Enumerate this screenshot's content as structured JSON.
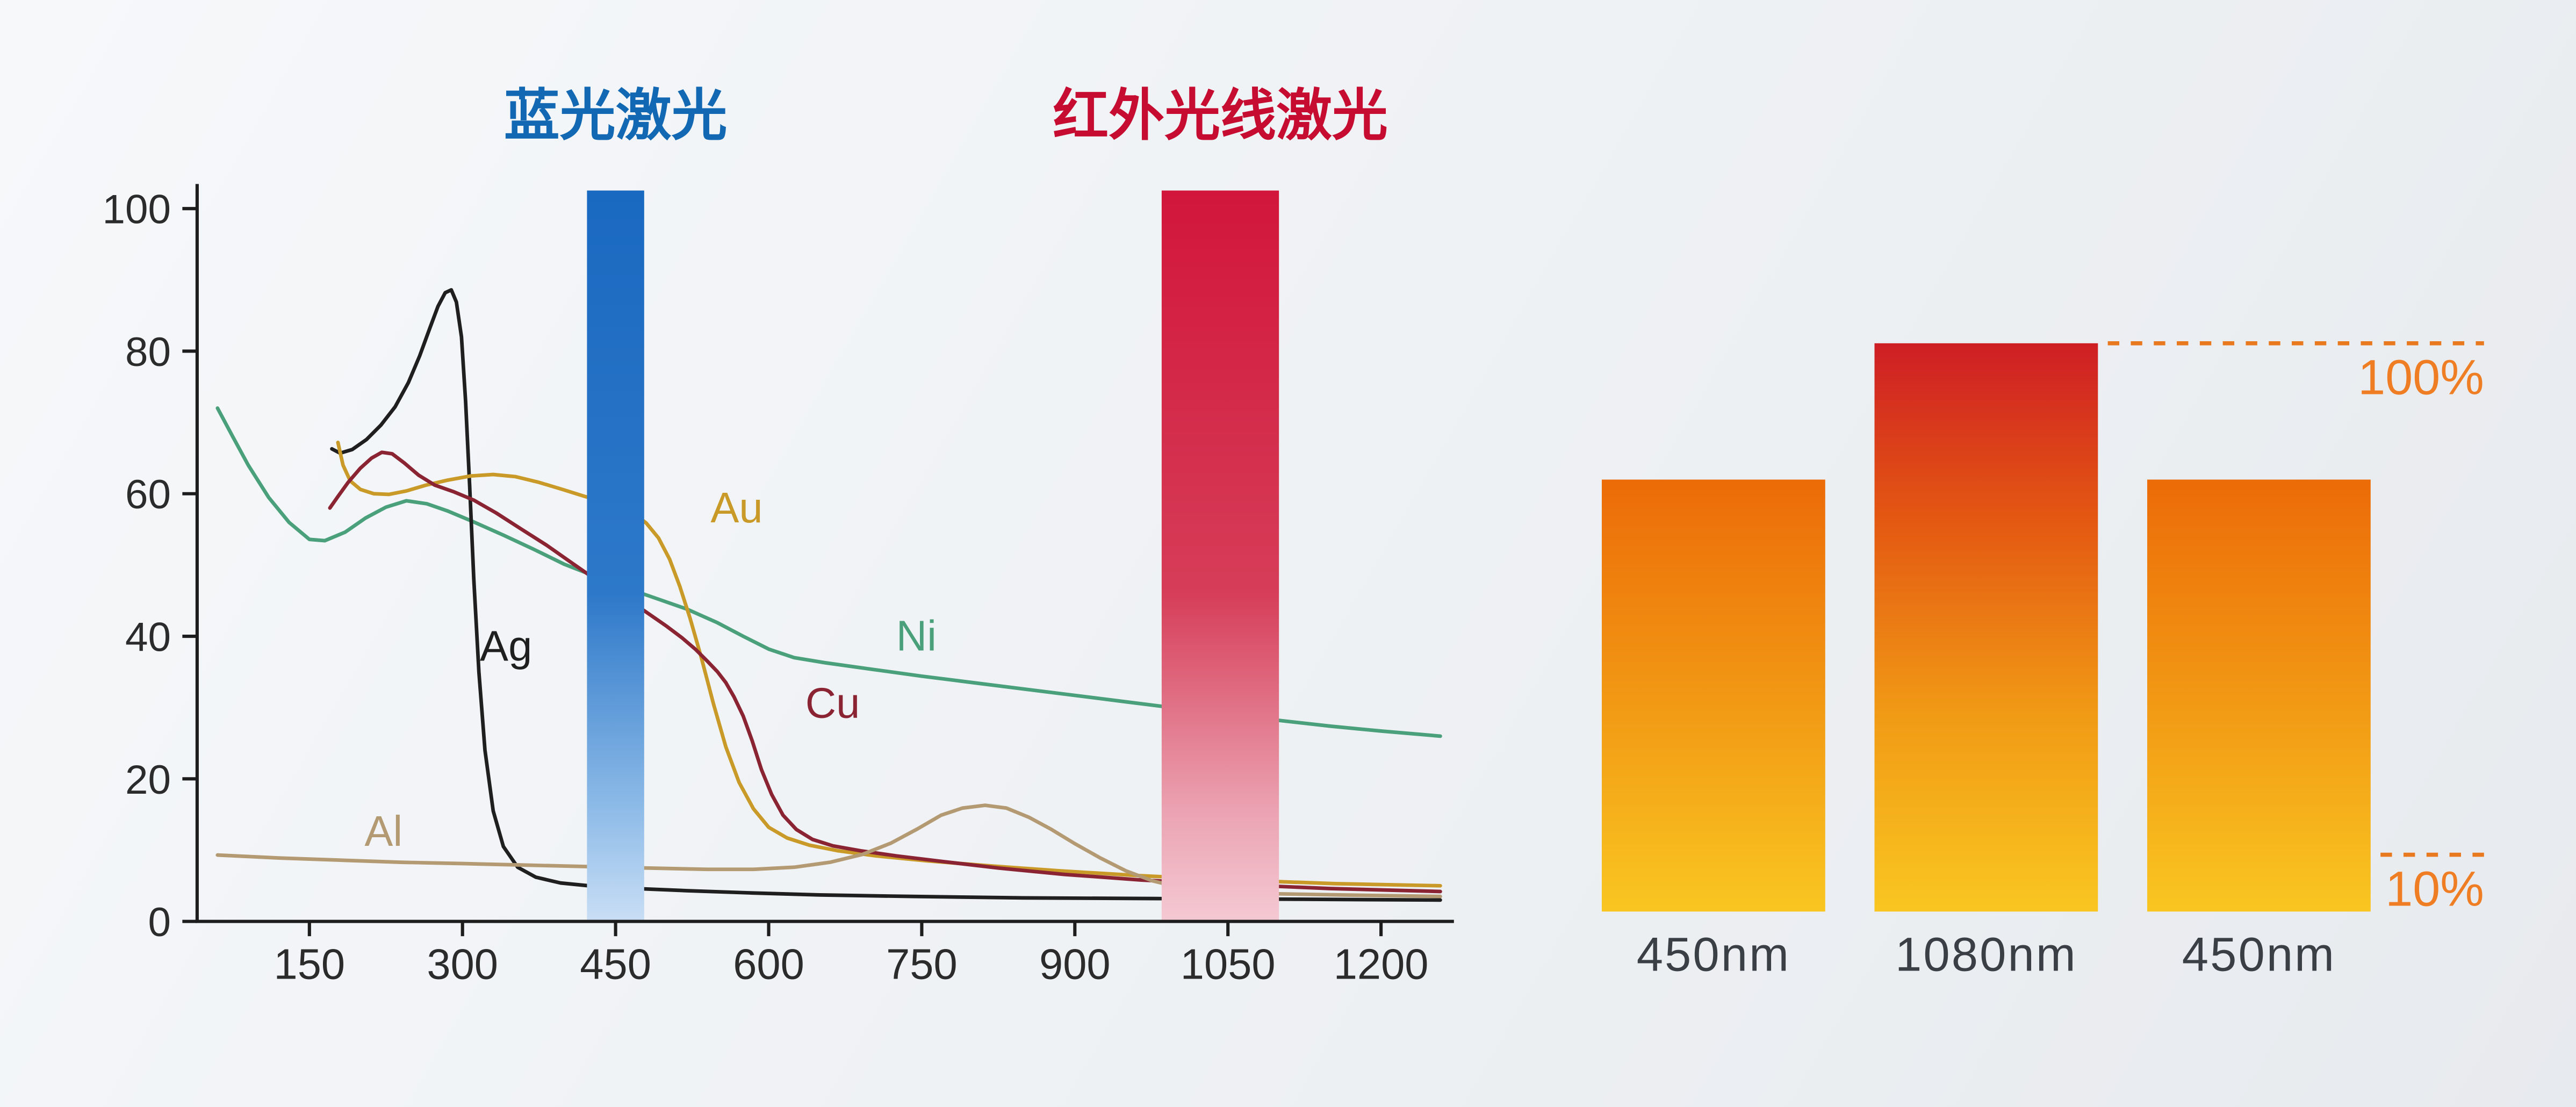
{
  "chart_data": [
    {
      "type": "line",
      "title": "",
      "xlabel": "",
      "ylabel": "",
      "xlim": [
        40,
        1265
      ],
      "ylim": [
        0,
        100
      ],
      "grid": false,
      "xticks": [
        "150",
        "300",
        "450",
        "600",
        "750",
        "900",
        "1050",
        "1200"
      ],
      "xtick_values": [
        150,
        300,
        450,
        600,
        750,
        900,
        1050,
        1200
      ],
      "yticks": [
        "0",
        "20",
        "40",
        "60",
        "80",
        "100"
      ],
      "ytick_values": [
        0,
        20,
        40,
        60,
        80,
        100
      ],
      "bands": [
        {
          "name": "blue-laser",
          "title": "蓝光激光",
          "title_color": "#1268b3",
          "range": [
            422,
            478
          ],
          "gradient": [
            [
              "0%",
              "#1a69c1"
            ],
            [
              "55%",
              "#2d78c9"
            ],
            [
              "85%",
              "#8fbce8"
            ],
            [
              "100%",
              "#c9def5"
            ]
          ]
        },
        {
          "name": "ir-laser",
          "title": "红外光线激光",
          "title_color": "#c60c30",
          "range": [
            985,
            1100
          ],
          "gradient": [
            [
              "0%",
              "#d2163b"
            ],
            [
              "55%",
              "#d63d58"
            ],
            [
              "85%",
              "#eba3b2"
            ],
            [
              "100%",
              "#f4c9d3"
            ]
          ]
        }
      ],
      "series": [
        {
          "name": "Ni",
          "color": "#4aa07a",
          "label_at": [
            725,
            38
          ],
          "points": [
            [
              60,
              72
            ],
            [
              75,
              68
            ],
            [
              90,
              64
            ],
            [
              110,
              59.5
            ],
            [
              130,
              56
            ],
            [
              150,
              53.6
            ],
            [
              165,
              53.4
            ],
            [
              185,
              54.6
            ],
            [
              205,
              56.6
            ],
            [
              225,
              58.1
            ],
            [
              245,
              59
            ],
            [
              265,
              58.6
            ],
            [
              285,
              57.6
            ],
            [
              310,
              56.1
            ],
            [
              340,
              54.2
            ],
            [
              370,
              52.2
            ],
            [
              400,
              50.1
            ],
            [
              430,
              48.4
            ],
            [
              460,
              46.8
            ],
            [
              490,
              45.3
            ],
            [
              520,
              43.8
            ],
            [
              550,
              41.9
            ],
            [
              575,
              40
            ],
            [
              600,
              38.2
            ],
            [
              625,
              37
            ],
            [
              655,
              36.3
            ],
            [
              700,
              35.4
            ],
            [
              750,
              34.4
            ],
            [
              800,
              33.5
            ],
            [
              850,
              32.6
            ],
            [
              900,
              31.7
            ],
            [
              950,
              30.8
            ],
            [
              1000,
              29.9
            ],
            [
              1050,
              29.1
            ],
            [
              1100,
              28.2
            ],
            [
              1150,
              27.4
            ],
            [
              1200,
              26.7
            ],
            [
              1258,
              26
            ]
          ]
        },
        {
          "name": "Ag",
          "color": "#1f1f1f",
          "label_at": [
            317,
            36.6
          ],
          "points": [
            [
              172,
              66.3
            ],
            [
              180,
              65.7
            ],
            [
              192,
              66.2
            ],
            [
              206,
              67.6
            ],
            [
              220,
              69.6
            ],
            [
              234,
              72.2
            ],
            [
              247,
              75.6
            ],
            [
              258,
              79.3
            ],
            [
              268,
              83.2
            ],
            [
              276,
              86.3
            ],
            [
              283,
              88.2
            ],
            [
              289,
              88.6
            ],
            [
              294,
              86.9
            ],
            [
              299,
              82
            ],
            [
              303,
              73
            ],
            [
              307,
              61
            ],
            [
              311,
              48
            ],
            [
              316,
              35
            ],
            [
              322,
              24
            ],
            [
              330,
              15.5
            ],
            [
              340,
              10.5
            ],
            [
              354,
              7.6
            ],
            [
              372,
              6.2
            ],
            [
              396,
              5.4
            ],
            [
              430,
              4.9
            ],
            [
              470,
              4.6
            ],
            [
              520,
              4.3
            ],
            [
              580,
              4
            ],
            [
              650,
              3.7
            ],
            [
              740,
              3.5
            ],
            [
              850,
              3.3
            ],
            [
              980,
              3.2
            ],
            [
              1120,
              3.1
            ],
            [
              1258,
              3
            ]
          ]
        },
        {
          "name": "Au",
          "color": "#c99a28",
          "label_at": [
            543,
            56
          ],
          "points": [
            [
              178,
              67.2
            ],
            [
              183,
              64
            ],
            [
              190,
              61.8
            ],
            [
              200,
              60.6
            ],
            [
              213,
              60
            ],
            [
              228,
              59.9
            ],
            [
              245,
              60.4
            ],
            [
              264,
              61.2
            ],
            [
              285,
              61.9
            ],
            [
              308,
              62.5
            ],
            [
              330,
              62.7
            ],
            [
              352,
              62.4
            ],
            [
              375,
              61.6
            ],
            [
              398,
              60.6
            ],
            [
              420,
              59.6
            ],
            [
              440,
              58.8
            ],
            [
              455,
              58.1
            ],
            [
              468,
              57.2
            ],
            [
              480,
              55.9
            ],
            [
              492,
              53.8
            ],
            [
              503,
              50.8
            ],
            [
              513,
              47
            ],
            [
              523,
              42.5
            ],
            [
              534,
              37
            ],
            [
              546,
              30.5
            ],
            [
              558,
              24.5
            ],
            [
              571,
              19.5
            ],
            [
              585,
              15.8
            ],
            [
              600,
              13.2
            ],
            [
              618,
              11.7
            ],
            [
              640,
              10.7
            ],
            [
              668,
              9.9
            ],
            [
              705,
              9.2
            ],
            [
              755,
              8.5
            ],
            [
              815,
              7.8
            ],
            [
              885,
              7.1
            ],
            [
              965,
              6.4
            ],
            [
              1055,
              5.8
            ],
            [
              1155,
              5.3
            ],
            [
              1258,
              5
            ]
          ]
        },
        {
          "name": "Cu",
          "color": "#8a2332",
          "label_at": [
            636,
            28.6
          ],
          "points": [
            [
              170,
              58
            ],
            [
              178,
              59.6
            ],
            [
              188,
              61.6
            ],
            [
              200,
              63.6
            ],
            [
              211,
              65
            ],
            [
              221,
              65.8
            ],
            [
              231,
              65.6
            ],
            [
              243,
              64.3
            ],
            [
              257,
              62.6
            ],
            [
              273,
              61.2
            ],
            [
              291,
              60.3
            ],
            [
              311,
              59.1
            ],
            [
              333,
              57.3
            ],
            [
              357,
              55.1
            ],
            [
              382,
              52.8
            ],
            [
              407,
              50.3
            ],
            [
              432,
              47.8
            ],
            [
              455,
              45.7
            ],
            [
              478,
              43.6
            ],
            [
              500,
              41.4
            ],
            [
              515,
              39.8
            ],
            [
              528,
              38.2
            ],
            [
              540,
              36.5
            ],
            [
              550,
              35
            ],
            [
              558,
              33.5
            ],
            [
              566,
              31.5
            ],
            [
              575,
              28.8
            ],
            [
              584,
              25.3
            ],
            [
              593,
              21.3
            ],
            [
              603,
              17.8
            ],
            [
              614,
              14.9
            ],
            [
              627,
              12.9
            ],
            [
              643,
              11.5
            ],
            [
              663,
              10.6
            ],
            [
              690,
              9.9
            ],
            [
              725,
              9.2
            ],
            [
              770,
              8.4
            ],
            [
              825,
              7.5
            ],
            [
              890,
              6.6
            ],
            [
              965,
              5.8
            ],
            [
              1050,
              5.2
            ],
            [
              1150,
              4.6
            ],
            [
              1258,
              4.2
            ]
          ]
        },
        {
          "name": "Al",
          "color": "#b49a72",
          "label_at": [
            204,
            10.6
          ],
          "points": [
            [
              60,
              9.3
            ],
            [
              120,
              8.9
            ],
            [
              180,
              8.6
            ],
            [
              240,
              8.3
            ],
            [
              300,
              8.1
            ],
            [
              360,
              7.9
            ],
            [
              420,
              7.7
            ],
            [
              480,
              7.5
            ],
            [
              540,
              7.3
            ],
            [
              585,
              7.3
            ],
            [
              625,
              7.6
            ],
            [
              660,
              8.3
            ],
            [
              692,
              9.4
            ],
            [
              720,
              11
            ],
            [
              746,
              13
            ],
            [
              769,
              14.9
            ],
            [
              790,
              15.9
            ],
            [
              812,
              16.3
            ],
            [
              833,
              15.9
            ],
            [
              855,
              14.6
            ],
            [
              877,
              12.9
            ],
            [
              900,
              10.9
            ],
            [
              925,
              8.9
            ],
            [
              950,
              7.1
            ],
            [
              976,
              5.7
            ],
            [
              1005,
              4.7
            ],
            [
              1040,
              4.2
            ],
            [
              1090,
              3.9
            ],
            [
              1160,
              3.7
            ],
            [
              1258,
              3.5
            ]
          ]
        }
      ],
      "axis_color": "#1d1d1d"
    },
    {
      "type": "bar",
      "categories": [
        "450nm",
        "1080nm",
        "450nm"
      ],
      "values": [
        76,
        100,
        76
      ],
      "ylim": [
        0,
        100
      ],
      "bar_styles": [
        "orange",
        "red",
        "orange"
      ],
      "gradients": {
        "orange": [
          [
            "0%",
            "#ec6b08"
          ],
          [
            "55%",
            "#f29c15"
          ],
          [
            "100%",
            "#f9c621"
          ]
        ],
        "red": [
          [
            "0%",
            "#ce1e25"
          ],
          [
            "30%",
            "#e35612"
          ],
          [
            "65%",
            "#f19a15"
          ],
          [
            "100%",
            "#f9c621"
          ]
        ]
      },
      "annotations": [
        {
          "text": "100%",
          "value": 100,
          "from_bar": 1
        },
        {
          "text": "10%",
          "value": 10,
          "from_bar": 2
        }
      ],
      "annotation_color": "#ef7d23",
      "dash_color": "#e8791f",
      "label_color": "#3a3f46"
    }
  ]
}
